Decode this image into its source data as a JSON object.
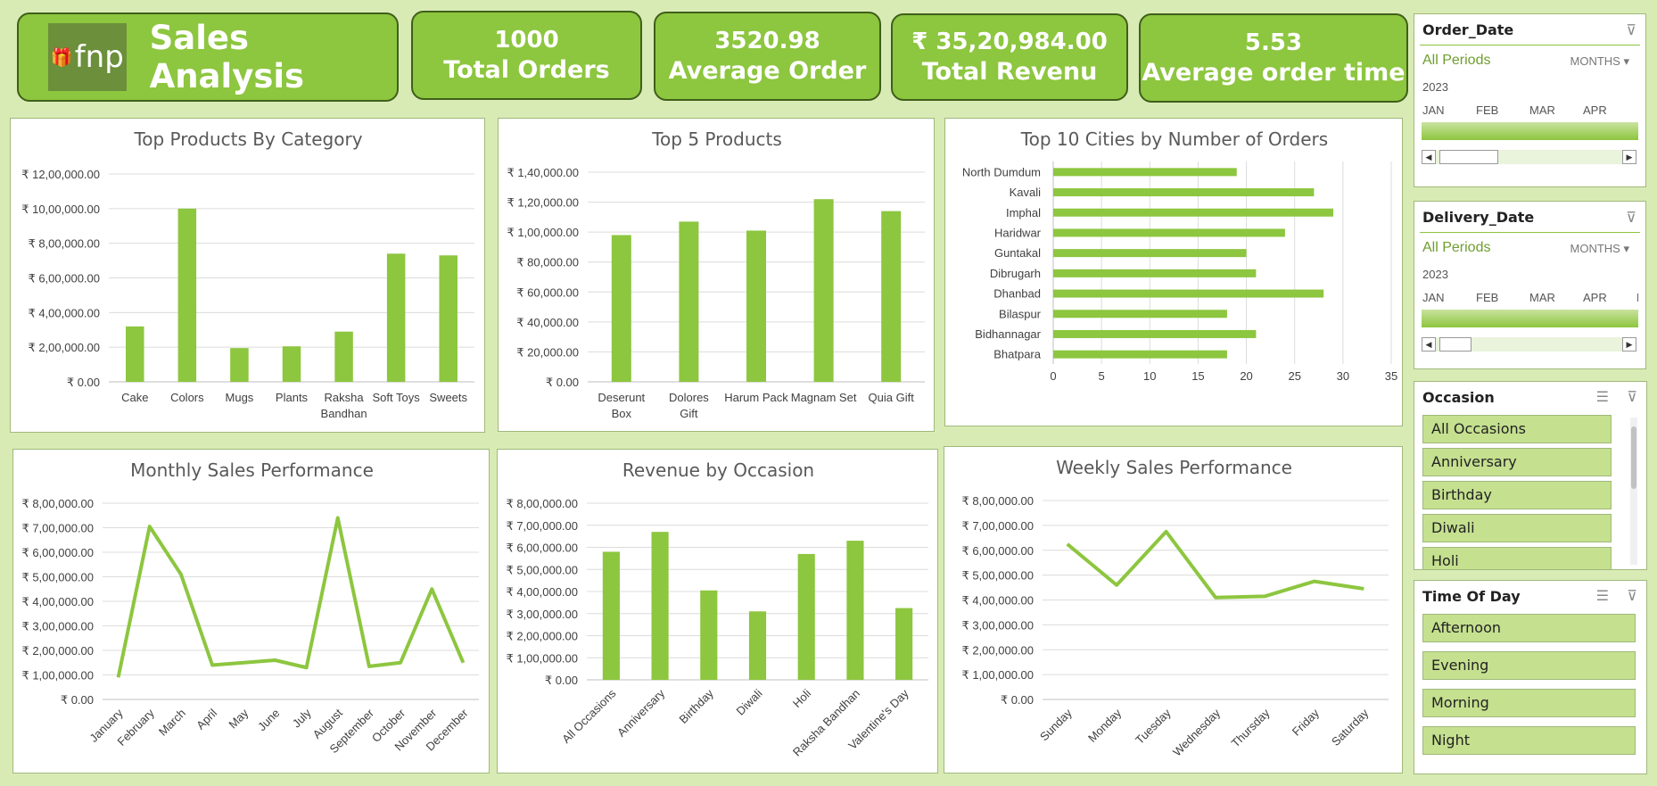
{
  "header": {
    "logo_text": "fnp",
    "title": "Sales Analysis"
  },
  "kpis": [
    {
      "value": "1000",
      "label": "Total Orders"
    },
    {
      "value": "3520.98",
      "label": "Average Order"
    },
    {
      "value": "₹ 35,20,984.00",
      "label": "Total Revenu"
    },
    {
      "value": "5.53",
      "label": "Average order time"
    }
  ],
  "colors": {
    "accent": "#8dc63f",
    "background": "#d9ebb5",
    "border": "#3f5f1a"
  },
  "chart_data": [
    {
      "type": "bar",
      "title": "Top Products By Category",
      "categories": [
        "Cake",
        "Colors",
        "Mugs",
        "Plants",
        "Raksha Bandhan",
        "Soft Toys",
        "Sweets"
      ],
      "values": [
        320000,
        1000000,
        195000,
        205000,
        290000,
        740000,
        730000
      ],
      "ylim": [
        0,
        1200000
      ],
      "yticks": [
        "₹ 0.00",
        "₹ 2,00,000.00",
        "₹ 4,00,000.00",
        "₹ 6,00,000.00",
        "₹ 8,00,000.00",
        "₹ 10,00,000.00",
        "₹ 12,00,000.00"
      ]
    },
    {
      "type": "bar",
      "title": "Top 5 Products",
      "categories": [
        "Deserunt Box",
        "Dolores Gift",
        "Harum Pack",
        "Magnam Set",
        "Quia Gift"
      ],
      "values": [
        98000,
        107000,
        101000,
        122000,
        114000
      ],
      "ylim": [
        0,
        140000
      ],
      "yticks": [
        "₹ 0.00",
        "₹ 20,000.00",
        "₹ 40,000.00",
        "₹ 60,000.00",
        "₹ 80,000.00",
        "₹ 1,00,000.00",
        "₹ 1,20,000.00",
        "₹ 1,40,000.00"
      ]
    },
    {
      "type": "bar",
      "orientation": "horizontal",
      "title": "Top 10 Cities by Number of Orders",
      "categories": [
        "North Dumdum",
        "Kavali",
        "Imphal",
        "Haridwar",
        "Guntakal",
        "Dibrugarh",
        "Dhanbad",
        "Bilaspur",
        "Bidhannagar",
        "Bhatpara"
      ],
      "values": [
        19,
        27,
        29,
        24,
        20,
        21,
        28,
        18,
        21,
        18
      ],
      "xlim": [
        0,
        35
      ],
      "xticks": [
        "0",
        "5",
        "10",
        "15",
        "20",
        "25",
        "30",
        "35"
      ]
    },
    {
      "type": "line",
      "title": "Monthly Sales Performance",
      "categories": [
        "January",
        "February",
        "March",
        "April",
        "May",
        "June",
        "July",
        "August",
        "September",
        "October",
        "November",
        "December"
      ],
      "values": [
        90000,
        705000,
        510000,
        140000,
        150000,
        160000,
        130000,
        740000,
        135000,
        150000,
        450000,
        150000
      ],
      "ylim": [
        0,
        800000
      ],
      "yticks": [
        "₹ 0.00",
        "₹ 1,00,000.00",
        "₹ 2,00,000.00",
        "₹ 3,00,000.00",
        "₹ 4,00,000.00",
        "₹ 5,00,000.00",
        "₹ 6,00,000.00",
        "₹ 7,00,000.00",
        "₹ 8,00,000.00"
      ]
    },
    {
      "type": "bar",
      "title": "Revenue by Occasion",
      "categories": [
        "All Occasions",
        "Anniversary",
        "Birthday",
        "Diwali",
        "Holi",
        "Raksha Bandhan",
        "Valentine's Day"
      ],
      "values": [
        580000,
        670000,
        405000,
        310000,
        570000,
        630000,
        325000
      ],
      "ylim": [
        0,
        800000
      ],
      "yticks": [
        "₹ 0.00",
        "₹ 1,00,000.00",
        "₹ 2,00,000.00",
        "₹ 3,00,000.00",
        "₹ 4,00,000.00",
        "₹ 5,00,000.00",
        "₹ 6,00,000.00",
        "₹ 7,00,000.00",
        "₹ 8,00,000.00"
      ]
    },
    {
      "type": "line",
      "title": "Weekly Sales Performance",
      "categories": [
        "Sunday",
        "Monday",
        "Tuesday",
        "Wednesday",
        "Thursday",
        "Friday",
        "Saturday"
      ],
      "values": [
        625000,
        460000,
        675000,
        410000,
        415000,
        475000,
        445000
      ],
      "ylim": [
        0,
        800000
      ],
      "yticks": [
        "₹ 0.00",
        "₹ 1,00,000.00",
        "₹ 2,00,000.00",
        "₹ 3,00,000.00",
        "₹ 4,00,000.00",
        "₹ 5,00,000.00",
        "₹ 6,00,000.00",
        "₹ 7,00,000.00",
        "₹ 8,00,000.00"
      ]
    }
  ],
  "slicers": {
    "order_date": {
      "title": "Order_Date",
      "selection": "All Periods",
      "level": "MONTHS",
      "year": "2023",
      "months": [
        "JAN",
        "FEB",
        "MAR",
        "APR"
      ]
    },
    "delivery_date": {
      "title": "Delivery_Date",
      "selection": "All Periods",
      "level": "MONTHS",
      "year": "2023",
      "months": [
        "JAN",
        "FEB",
        "MAR",
        "APR",
        "M"
      ]
    },
    "occasion": {
      "title": "Occasion",
      "items": [
        "All Occasions",
        "Anniversary",
        "Birthday",
        "Diwali",
        "Holi"
      ]
    },
    "time_of_day": {
      "title": "Time Of Day",
      "items": [
        "Afternoon",
        "Evening",
        "Morning",
        "Night"
      ]
    }
  }
}
